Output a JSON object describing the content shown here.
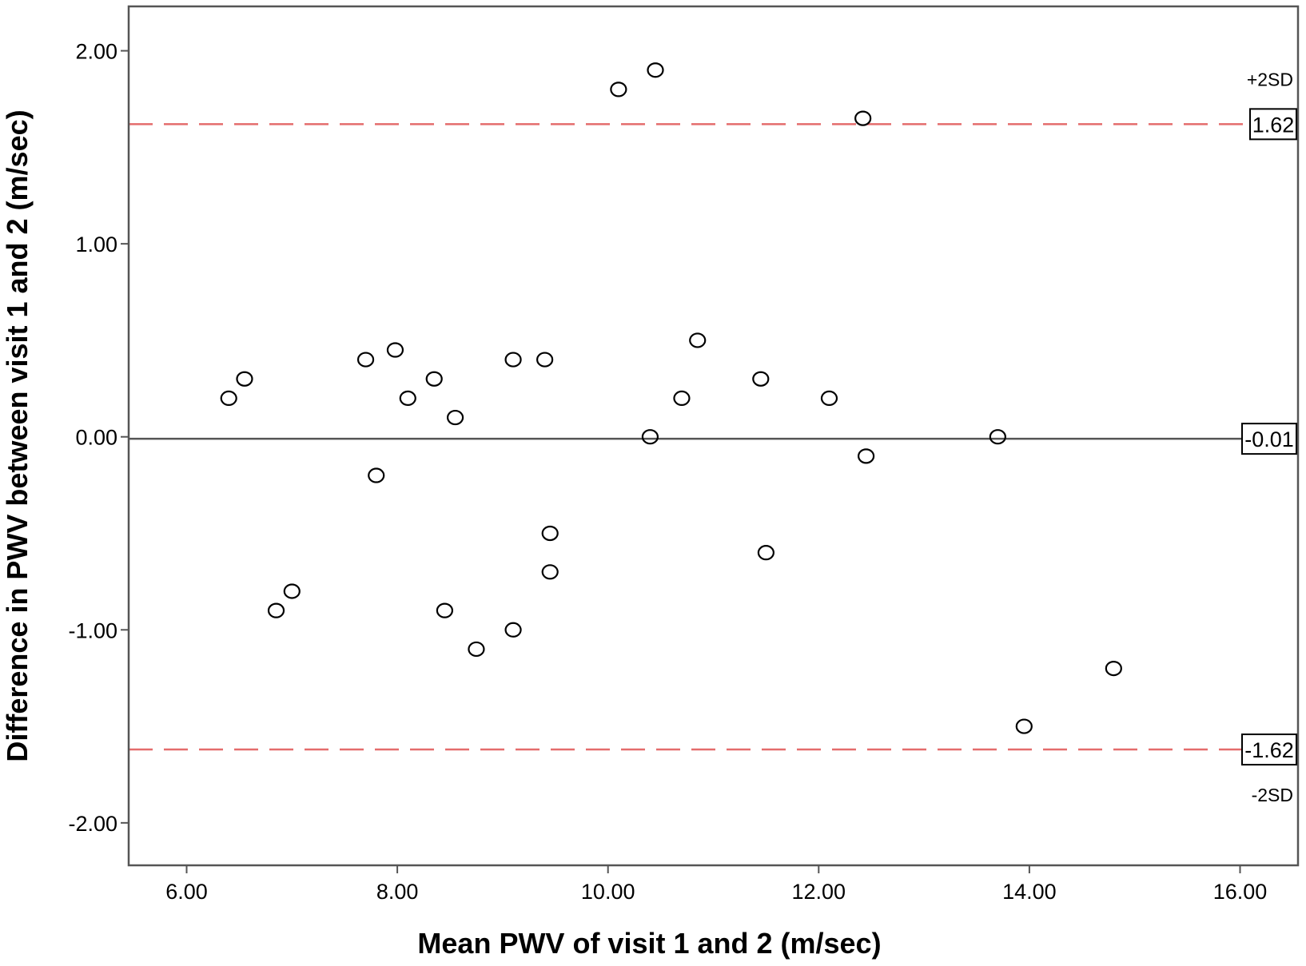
{
  "chart_data": {
    "type": "scatter",
    "title": "",
    "xlabel": "Mean PWV of visit 1 and 2 (m/sec)",
    "ylabel": "Difference in PWV between visit 1 and 2 (m/sec)",
    "xlim": [
      5.45,
      16.55
    ],
    "ylim": [
      -2.22,
      2.23
    ],
    "xticks": [
      6,
      8,
      10,
      12,
      14,
      16
    ],
    "xtick_labels": [
      "6.00",
      "8.00",
      "10.00",
      "12.00",
      "14.00",
      "16.00"
    ],
    "yticks": [
      2,
      1,
      0,
      -1,
      -2
    ],
    "ytick_labels": [
      "2.00",
      "1.00",
      "0.00",
      "-1.00",
      "-2.00"
    ],
    "grid": false,
    "legend": false,
    "colors": {
      "limit_line": "#e46c6c",
      "mean_line": "#555555",
      "marker_stroke": "#000000",
      "frame": "#555555"
    },
    "reference_lines": [
      {
        "name": "upper",
        "value": 1.62,
        "label": "1.62",
        "sd_label": "+2SD",
        "style": "dashed"
      },
      {
        "name": "mean",
        "value": -0.01,
        "label": "-0.01",
        "sd_label": "",
        "style": "solid"
      },
      {
        "name": "lower",
        "value": -1.62,
        "label": "-1.62",
        "sd_label": "-2SD",
        "style": "dashed"
      }
    ],
    "points": [
      {
        "x": 6.4,
        "y": 0.2
      },
      {
        "x": 6.55,
        "y": 0.3
      },
      {
        "x": 6.85,
        "y": -0.9
      },
      {
        "x": 7.0,
        "y": -0.8
      },
      {
        "x": 7.7,
        "y": 0.4
      },
      {
        "x": 7.8,
        "y": -0.2
      },
      {
        "x": 7.98,
        "y": 0.45
      },
      {
        "x": 8.1,
        "y": 0.2
      },
      {
        "x": 8.35,
        "y": 0.3
      },
      {
        "x": 8.45,
        "y": -0.9
      },
      {
        "x": 8.55,
        "y": 0.1
      },
      {
        "x": 8.75,
        "y": -1.1
      },
      {
        "x": 9.1,
        "y": 0.4
      },
      {
        "x": 9.1,
        "y": -1.0
      },
      {
        "x": 9.4,
        "y": 0.4
      },
      {
        "x": 9.45,
        "y": -0.5
      },
      {
        "x": 9.45,
        "y": -0.7
      },
      {
        "x": 10.1,
        "y": 1.8
      },
      {
        "x": 10.4,
        "y": 0.0
      },
      {
        "x": 10.45,
        "y": 1.9
      },
      {
        "x": 10.7,
        "y": 0.2
      },
      {
        "x": 10.85,
        "y": 0.5
      },
      {
        "x": 11.45,
        "y": 0.3
      },
      {
        "x": 11.5,
        "y": -0.6
      },
      {
        "x": 12.1,
        "y": 0.2
      },
      {
        "x": 12.42,
        "y": 1.65
      },
      {
        "x": 12.45,
        "y": -0.1
      },
      {
        "x": 13.7,
        "y": 0.0
      },
      {
        "x": 13.95,
        "y": -1.5
      },
      {
        "x": 14.8,
        "y": -1.2
      }
    ]
  }
}
